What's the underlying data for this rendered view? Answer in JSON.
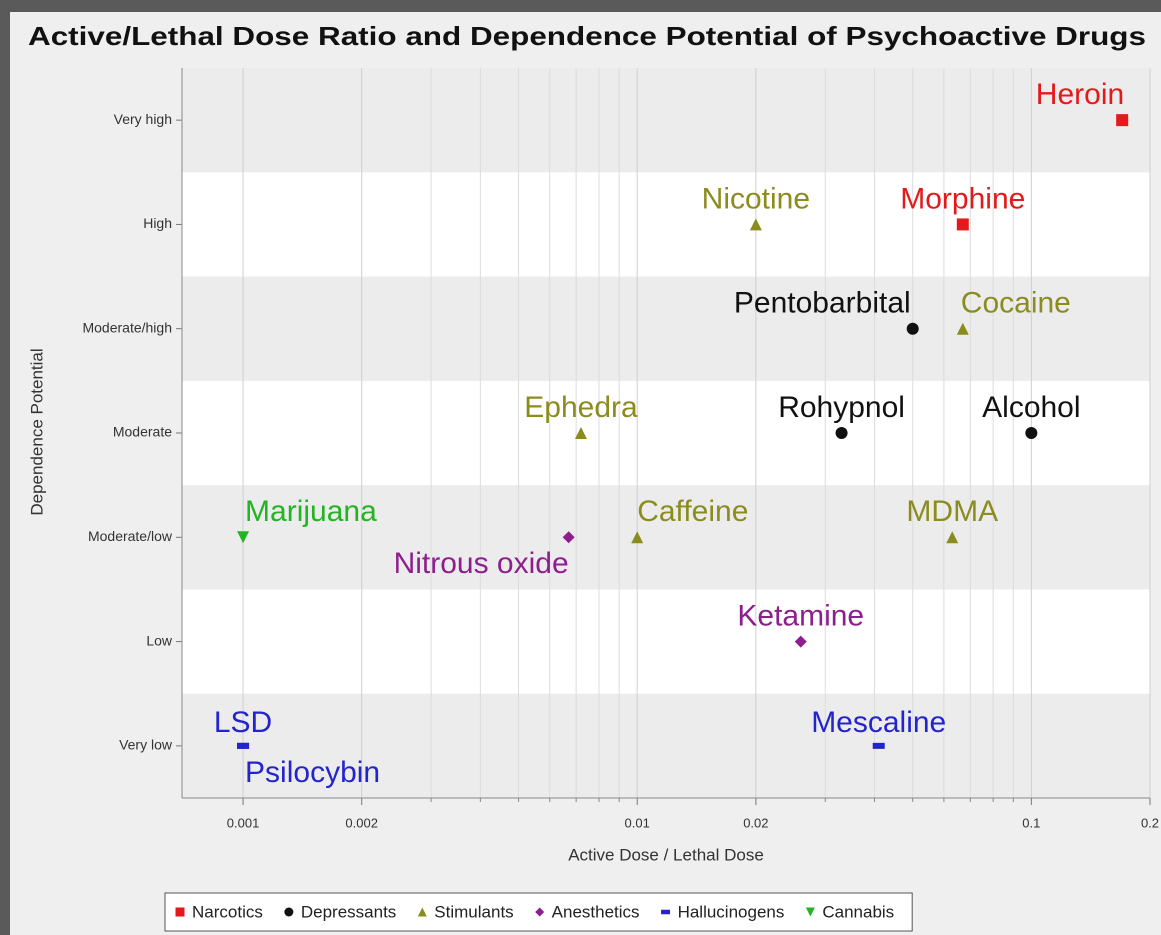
{
  "chart_data": {
    "type": "scatter",
    "title": "Active/Lethal Dose Ratio and Dependence Potential of Psychoactive Drugs",
    "x_label": "Active Dose / Lethal Dose",
    "y_label": "Dependence Potential",
    "xscale": "log",
    "xlim": [
      0.0007,
      0.2
    ],
    "xticks": [
      0.001,
      0.002,
      0.01,
      0.02,
      0.1,
      0.2
    ],
    "xminorticks": [
      0.003,
      0.004,
      0.005,
      0.006,
      0.007,
      0.008,
      0.009,
      0.03,
      0.04,
      0.05,
      0.06,
      0.07,
      0.08,
      0.09
    ],
    "ycategories": [
      "Very low",
      "Low",
      "Moderate/low",
      "Moderate",
      "Moderate/high",
      "High",
      "Very high"
    ],
    "grid": true,
    "legend": "bottom",
    "series": [
      {
        "name": "Narcotics",
        "color": "#e31a1c",
        "marker": "square",
        "labels": [
          "Heroin",
          "Morphine"
        ],
        "x": [
          0.17,
          0.067
        ],
        "y": [
          "Very high",
          "High"
        ]
      },
      {
        "name": "Depressants",
        "color": "#111111",
        "marker": "circle",
        "labels": [
          "Pentobarbital",
          "Rohypnol",
          "Alcohol"
        ],
        "x": [
          0.05,
          0.033,
          0.1
        ],
        "y": [
          "Moderate/high",
          "Moderate",
          "Moderate"
        ]
      },
      {
        "name": "Stimulants",
        "color": "#8c8c1e",
        "marker": "triangle",
        "labels": [
          "Nicotine",
          "Cocaine",
          "Ephedra",
          "Caffeine",
          "MDMA"
        ],
        "x": [
          0.02,
          0.067,
          0.0072,
          0.01,
          0.063
        ],
        "y": [
          "High",
          "Moderate/high",
          "Moderate",
          "Moderate/low",
          "Moderate/low"
        ]
      },
      {
        "name": "Anesthetics",
        "color": "#8e1e8e",
        "marker": "diamond",
        "labels": [
          "Nitrous oxide",
          "Ketamine"
        ],
        "x": [
          0.0067,
          0.026
        ],
        "y": [
          "Moderate/low",
          "Low"
        ]
      },
      {
        "name": "Hallucinogens",
        "color": "#2424cc",
        "marker": "dash",
        "labels": [
          "LSD",
          "Psilocybin",
          "Mescaline"
        ],
        "x": [
          0.001,
          0.001,
          0.041
        ],
        "y": [
          "Very low",
          "Very low",
          "Very low"
        ]
      },
      {
        "name": "Cannabis",
        "color": "#22b422",
        "marker": "down-triangle",
        "labels": [
          "Marijuana"
        ],
        "x": [
          0.001
        ],
        "y": [
          "Moderate/low"
        ]
      }
    ]
  }
}
